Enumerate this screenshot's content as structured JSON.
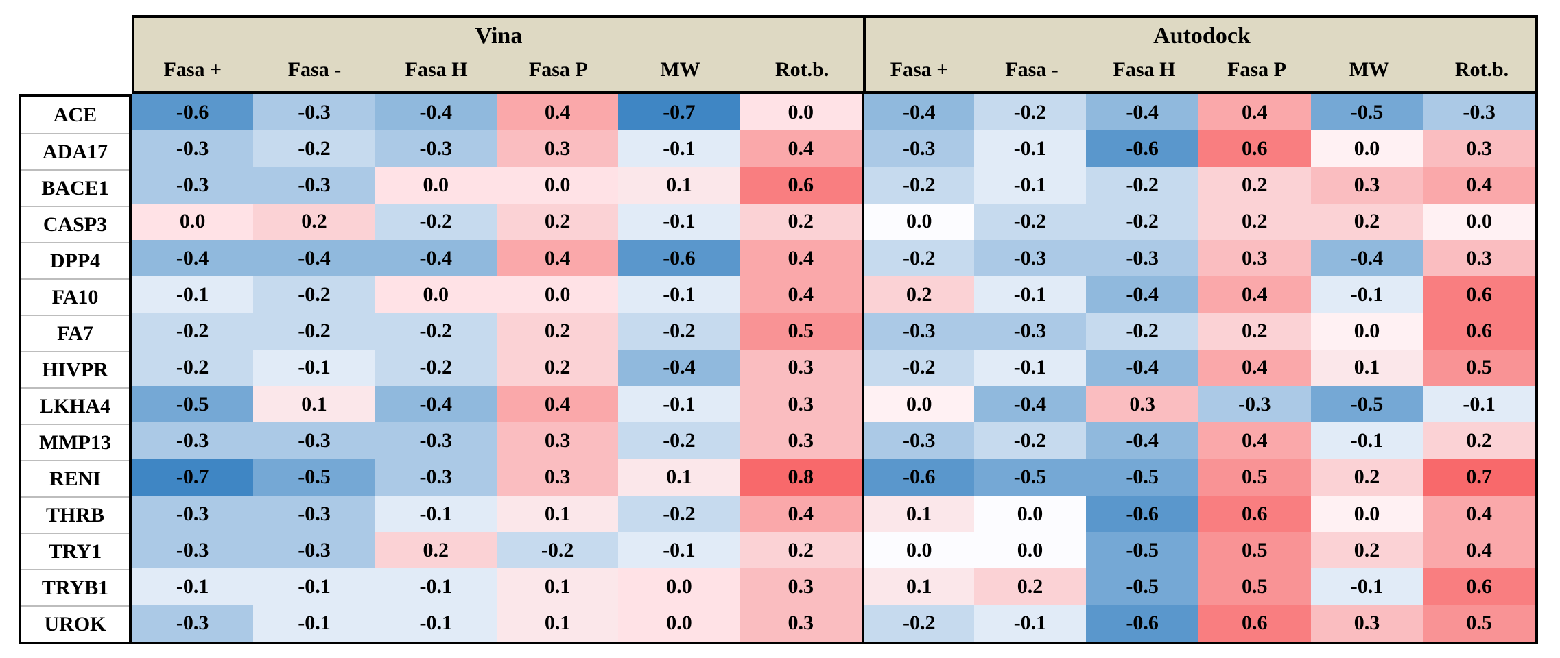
{
  "chart_data": {
    "type": "heatmap",
    "title": "",
    "groups": [
      "Vina",
      "Autodock"
    ],
    "columns": [
      "Fasa +",
      "Fasa -",
      "Fasa H",
      "Fasa P",
      "MW",
      "Rot.b."
    ],
    "rows": [
      {
        "label": "ACE",
        "vina": [
          -0.6,
          -0.3,
          -0.4,
          0.4,
          -0.7,
          0.0
        ],
        "autodock": [
          -0.4,
          -0.2,
          -0.4,
          0.4,
          -0.5,
          -0.3
        ]
      },
      {
        "label": "ADA17",
        "vina": [
          -0.3,
          -0.2,
          -0.3,
          0.3,
          -0.1,
          0.4
        ],
        "autodock": [
          -0.3,
          -0.1,
          -0.6,
          0.6,
          0.0,
          0.3
        ]
      },
      {
        "label": "BACE1",
        "vina": [
          -0.3,
          -0.3,
          0.0,
          0.0,
          0.1,
          0.6
        ],
        "autodock": [
          -0.2,
          -0.1,
          -0.2,
          0.2,
          0.3,
          0.4
        ]
      },
      {
        "label": "CASP3",
        "vina": [
          0.0,
          0.2,
          -0.2,
          0.2,
          -0.1,
          0.2
        ],
        "autodock": [
          0.0,
          -0.2,
          -0.2,
          0.2,
          0.2,
          0.0
        ]
      },
      {
        "label": "DPP4",
        "vina": [
          -0.4,
          -0.4,
          -0.4,
          0.4,
          -0.6,
          0.4
        ],
        "autodock": [
          -0.2,
          -0.3,
          -0.3,
          0.3,
          -0.4,
          0.3
        ]
      },
      {
        "label": "FA10",
        "vina": [
          -0.1,
          -0.2,
          0.0,
          0.0,
          -0.1,
          0.4
        ],
        "autodock": [
          0.2,
          -0.1,
          -0.4,
          0.4,
          -0.1,
          0.6
        ]
      },
      {
        "label": "FA7",
        "vina": [
          -0.2,
          -0.2,
          -0.2,
          0.2,
          -0.2,
          0.5
        ],
        "autodock": [
          -0.3,
          -0.3,
          -0.2,
          0.2,
          0.0,
          0.6
        ]
      },
      {
        "label": "HIVPR",
        "vina": [
          -0.2,
          -0.1,
          -0.2,
          0.2,
          -0.4,
          0.3
        ],
        "autodock": [
          -0.2,
          -0.1,
          -0.4,
          0.4,
          0.1,
          0.5
        ]
      },
      {
        "label": "LKHA4",
        "vina": [
          -0.5,
          0.1,
          -0.4,
          0.4,
          -0.1,
          0.3
        ],
        "autodock": [
          0.0,
          -0.4,
          0.3,
          -0.3,
          -0.5,
          -0.1
        ]
      },
      {
        "label": "MMP13",
        "vina": [
          -0.3,
          -0.3,
          -0.3,
          0.3,
          -0.2,
          0.3
        ],
        "autodock": [
          -0.3,
          -0.2,
          -0.4,
          0.4,
          -0.1,
          0.2
        ]
      },
      {
        "label": "RENI",
        "vina": [
          -0.7,
          -0.5,
          -0.3,
          0.3,
          0.1,
          0.8
        ],
        "autodock": [
          -0.6,
          -0.5,
          -0.5,
          0.5,
          0.2,
          0.7
        ]
      },
      {
        "label": "THRB",
        "vina": [
          -0.3,
          -0.3,
          -0.1,
          0.1,
          -0.2,
          0.4
        ],
        "autodock": [
          0.1,
          0.0,
          -0.6,
          0.6,
          0.0,
          0.4
        ]
      },
      {
        "label": "TRY1",
        "vina": [
          -0.3,
          -0.3,
          0.2,
          -0.2,
          -0.1,
          0.2
        ],
        "autodock": [
          0.0,
          0.0,
          -0.5,
          0.5,
          0.2,
          0.4
        ]
      },
      {
        "label": "TRYB1",
        "vina": [
          -0.1,
          -0.1,
          -0.1,
          0.1,
          0.0,
          0.3
        ],
        "autodock": [
          0.1,
          0.2,
          -0.5,
          0.5,
          -0.1,
          0.6
        ]
      },
      {
        "label": "UROK",
        "vina": [
          -0.3,
          -0.1,
          -0.1,
          0.1,
          0.0,
          0.3
        ],
        "autodock": [
          -0.2,
          -0.1,
          -0.6,
          0.6,
          0.3,
          0.5
        ]
      }
    ],
    "value_format": "one_decimal",
    "color_scale": {
      "domain": [
        -0.7,
        0.0,
        0.7
      ],
      "negative_end": "#3F86C4",
      "midpoint": "#FCFCFF",
      "positive_end": "#F8696B"
    },
    "zero_tint_overrides": {
      "pink": [
        [
          "ACE",
          "vina",
          5
        ],
        [
          "BACE1",
          "vina",
          2
        ],
        [
          "BACE1",
          "vina",
          3
        ],
        [
          "CASP3",
          "vina",
          0
        ],
        [
          "FA10",
          "vina",
          2
        ],
        [
          "FA10",
          "vina",
          3
        ],
        [
          "TRYB1",
          "vina",
          4
        ],
        [
          "UROK",
          "vina",
          4
        ]
      ],
      "faint_pink": [
        [
          "ADA17",
          "autodock",
          4
        ],
        [
          "CASP3",
          "autodock",
          5
        ],
        [
          "FA7",
          "autodock",
          4
        ],
        [
          "LKHA4",
          "autodock",
          0
        ],
        [
          "THRB",
          "autodock",
          4
        ]
      ]
    },
    "colors": {
      "header_bg": "#DED9C3",
      "border": "#000000",
      "label_separator": "#BDBDBD",
      "text": "#000000",
      "zero_pink": "#FFE2E6",
      "zero_faint_pink": "#FFF1F3"
    },
    "layout_hints": {
      "legend": "none",
      "grid": "off"
    }
  }
}
